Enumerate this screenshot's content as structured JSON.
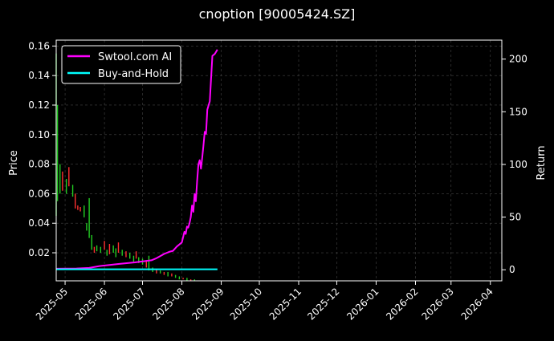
{
  "chart_data": {
    "type": "line",
    "title": "cnoption [90005424.SZ]",
    "ylabel_left": "Price",
    "ylabel_right": "Return",
    "grid": true,
    "legend_placement": "top-left",
    "x_ticks": [
      "2025-05",
      "2025-06",
      "2025-07",
      "2025-08",
      "2025-09",
      "2025-10",
      "2025-11",
      "2025-12",
      "2026-01",
      "2026-02",
      "2026-03",
      "2026-04"
    ],
    "x_range": [
      "2025-04-24",
      "2026-04-10"
    ],
    "y_left_ticks": [
      "0.02",
      "0.04",
      "0.06",
      "0.08",
      "0.10",
      "0.12",
      "0.14",
      "0.16"
    ],
    "y_left_range": [
      0.001,
      0.164
    ],
    "y_right_ticks": [
      "0",
      "50",
      "100",
      "150",
      "200"
    ],
    "y_right_range": [
      -10.5,
      218
    ],
    "series": [
      {
        "name": "Swtool.com AI",
        "axis": "right",
        "color": "#ff00ff",
        "points": [
          [
            "2025-04-24",
            1
          ],
          [
            "2025-05-10",
            1.2
          ],
          [
            "2025-05-20",
            1.8
          ],
          [
            "2025-05-28",
            3.5
          ],
          [
            "2025-06-05",
            4.5
          ],
          [
            "2025-06-12",
            5.5
          ],
          [
            "2025-06-25",
            7
          ],
          [
            "2025-07-08",
            9
          ],
          [
            "2025-07-12",
            11
          ],
          [
            "2025-07-15",
            13
          ],
          [
            "2025-07-18",
            15
          ],
          [
            "2025-07-22",
            17
          ],
          [
            "2025-07-25",
            18
          ],
          [
            "2025-07-28",
            22
          ],
          [
            "2025-07-30",
            24
          ],
          [
            "2025-08-01",
            26
          ],
          [
            "2025-08-03",
            36
          ],
          [
            "2025-08-04",
            34
          ],
          [
            "2025-08-05",
            41
          ],
          [
            "2025-08-06",
            40
          ],
          [
            "2025-08-07",
            44
          ],
          [
            "2025-08-08",
            50
          ],
          [
            "2025-08-09",
            61
          ],
          [
            "2025-08-10",
            55
          ],
          [
            "2025-08-11",
            72
          ],
          [
            "2025-08-12",
            65
          ],
          [
            "2025-08-13",
            84
          ],
          [
            "2025-08-14",
            100
          ],
          [
            "2025-08-15",
            104
          ],
          [
            "2025-08-16",
            96
          ],
          [
            "2025-08-17",
            106
          ],
          [
            "2025-08-18",
            118
          ],
          [
            "2025-08-19",
            131
          ],
          [
            "2025-08-20",
            129
          ],
          [
            "2025-08-21",
            152
          ],
          [
            "2025-08-23",
            160
          ],
          [
            "2025-08-25",
            203
          ],
          [
            "2025-08-27",
            205
          ],
          [
            "2025-08-29",
            209
          ]
        ]
      },
      {
        "name": "Buy-and-Hold",
        "axis": "right",
        "color": "#00ffff",
        "points": [
          [
            "2025-04-24",
            0.5
          ],
          [
            "2025-08-29",
            0.5
          ]
        ]
      }
    ],
    "price_bars": [
      {
        "date": "2025-04-24",
        "low": 0.045,
        "high": 0.155,
        "dir": "down"
      },
      {
        "date": "2025-04-25",
        "low": 0.055,
        "high": 0.12,
        "dir": "down"
      },
      {
        "date": "2025-04-27",
        "low": 0.06,
        "high": 0.08,
        "dir": "down"
      },
      {
        "date": "2025-04-29",
        "low": 0.062,
        "high": 0.075,
        "dir": "up"
      },
      {
        "date": "2025-05-02",
        "low": 0.06,
        "high": 0.07,
        "dir": "down"
      },
      {
        "date": "2025-05-04",
        "low": 0.065,
        "high": 0.078,
        "dir": "up"
      },
      {
        "date": "2025-05-07",
        "low": 0.058,
        "high": 0.066,
        "dir": "down"
      },
      {
        "date": "2025-05-09",
        "low": 0.05,
        "high": 0.06,
        "dir": "up"
      },
      {
        "date": "2025-05-11",
        "low": 0.049,
        "high": 0.052,
        "dir": "up"
      },
      {
        "date": "2025-05-13",
        "low": 0.048,
        "high": 0.051,
        "dir": "up"
      },
      {
        "date": "2025-05-16",
        "low": 0.044,
        "high": 0.052,
        "dir": "down"
      },
      {
        "date": "2025-05-18",
        "low": 0.035,
        "high": 0.04,
        "dir": "down"
      },
      {
        "date": "2025-05-20",
        "low": 0.03,
        "high": 0.057,
        "dir": "down"
      },
      {
        "date": "2025-05-22",
        "low": 0.022,
        "high": 0.032,
        "dir": "down"
      },
      {
        "date": "2025-05-24",
        "low": 0.02,
        "high": 0.024,
        "dir": "up"
      },
      {
        "date": "2025-05-26",
        "low": 0.021,
        "high": 0.025,
        "dir": "down"
      },
      {
        "date": "2025-05-29",
        "low": 0.02,
        "high": 0.024,
        "dir": "down"
      },
      {
        "date": "2025-06-01",
        "low": 0.022,
        "high": 0.028,
        "dir": "up"
      },
      {
        "date": "2025-06-03",
        "low": 0.018,
        "high": 0.022,
        "dir": "down"
      },
      {
        "date": "2025-06-05",
        "low": 0.019,
        "high": 0.026,
        "dir": "up"
      },
      {
        "date": "2025-06-08",
        "low": 0.02,
        "high": 0.025,
        "dir": "down"
      },
      {
        "date": "2025-06-10",
        "low": 0.017,
        "high": 0.023,
        "dir": "down"
      },
      {
        "date": "2025-06-12",
        "low": 0.02,
        "high": 0.027,
        "dir": "up"
      },
      {
        "date": "2025-06-15",
        "low": 0.018,
        "high": 0.022,
        "dir": "down"
      },
      {
        "date": "2025-06-18",
        "low": 0.017,
        "high": 0.021,
        "dir": "up"
      },
      {
        "date": "2025-06-21",
        "low": 0.016,
        "high": 0.02,
        "dir": "down"
      },
      {
        "date": "2025-06-24",
        "low": 0.014,
        "high": 0.018,
        "dir": "down"
      },
      {
        "date": "2025-06-26",
        "low": 0.016,
        "high": 0.021,
        "dir": "up"
      },
      {
        "date": "2025-06-28",
        "low": 0.013,
        "high": 0.017,
        "dir": "down"
      },
      {
        "date": "2025-07-01",
        "low": 0.012,
        "high": 0.016,
        "dir": "down"
      },
      {
        "date": "2025-07-04",
        "low": 0.01,
        "high": 0.015,
        "dir": "up"
      },
      {
        "date": "2025-07-06",
        "low": 0.008,
        "high": 0.018,
        "dir": "down"
      },
      {
        "date": "2025-07-09",
        "low": 0.007,
        "high": 0.01,
        "dir": "down"
      },
      {
        "date": "2025-07-12",
        "low": 0.006,
        "high": 0.009,
        "dir": "up"
      },
      {
        "date": "2025-07-15",
        "low": 0.006,
        "high": 0.008,
        "dir": "down"
      },
      {
        "date": "2025-07-18",
        "low": 0.005,
        "high": 0.007,
        "dir": "up"
      },
      {
        "date": "2025-07-21",
        "low": 0.004,
        "high": 0.007,
        "dir": "down"
      },
      {
        "date": "2025-07-24",
        "low": 0.004,
        "high": 0.006,
        "dir": "up"
      },
      {
        "date": "2025-07-27",
        "low": 0.003,
        "high": 0.005,
        "dir": "down"
      },
      {
        "date": "2025-07-30",
        "low": 0.002,
        "high": 0.004,
        "dir": "down"
      },
      {
        "date": "2025-08-02",
        "low": 0.002,
        "high": 0.003,
        "dir": "up"
      },
      {
        "date": "2025-08-05",
        "low": 0.001,
        "high": 0.003,
        "dir": "down"
      },
      {
        "date": "2025-08-08",
        "low": 0.001,
        "high": 0.002,
        "dir": "up"
      },
      {
        "date": "2025-08-11",
        "low": 0.001,
        "high": 0.002,
        "dir": "down"
      }
    ]
  },
  "colors": {
    "background": "#000000",
    "text": "#ffffff",
    "grid": "#444444",
    "up_bar": "#ff3030",
    "down_bar": "#22cc22"
  }
}
